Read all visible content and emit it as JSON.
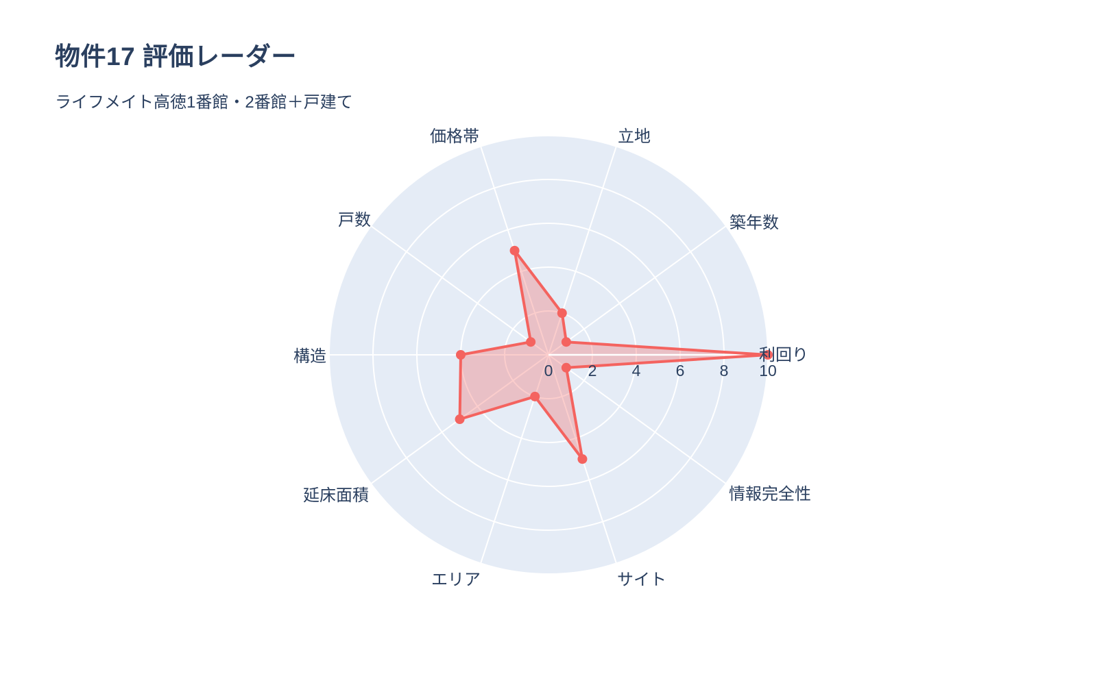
{
  "page": {
    "title": "物件17 評価レーダー",
    "subtitle": "ライフメイト高徳1番館・2番館＋戸建て"
  },
  "colors": {
    "text": "#2a3f5f",
    "polar_background": "#e5ecf6",
    "grid": "#ffffff",
    "series_line": "#f4635f",
    "series_fill": "rgba(244,99,95,0.32)"
  },
  "chart_data": {
    "type": "radar",
    "title": "物件17 評価レーダー",
    "subtitle": "ライフメイト高徳1番館・2番館＋戸建て",
    "categories": [
      "利回り",
      "築年数",
      "立地",
      "価格帯",
      "戸数",
      "構造",
      "延床面積",
      "エリア",
      "サイト",
      "情報完全性"
    ],
    "series": [
      {
        "name": "物件17",
        "values": [
          10,
          1,
          2,
          5,
          1,
          4,
          5,
          2,
          5,
          1
        ]
      }
    ],
    "radial_range": [
      0,
      10
    ],
    "radial_ticks": [
      0,
      2,
      4,
      6,
      8,
      10
    ],
    "start_angle_deg": 0,
    "direction": "counterclockwise",
    "angle_step_deg": 36,
    "grid": true,
    "legend": false
  }
}
